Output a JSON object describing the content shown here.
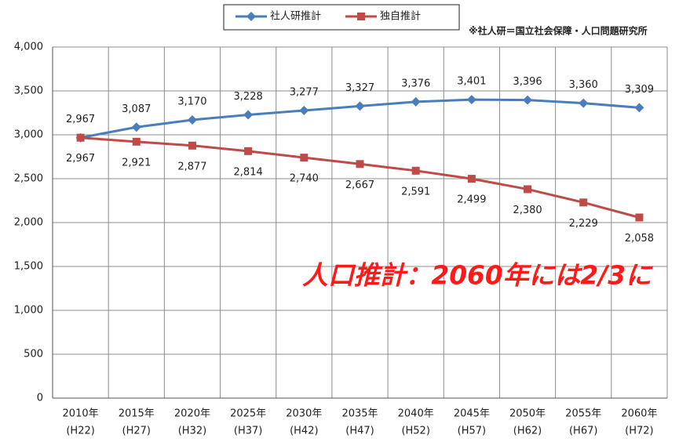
{
  "chart_data": {
    "type": "line",
    "categories": [
      [
        "2010年",
        "(H22)"
      ],
      [
        "2015年",
        "(H27)"
      ],
      [
        "2020年",
        "(H32)"
      ],
      [
        "2025年",
        "(H37)"
      ],
      [
        "2030年",
        "(H42)"
      ],
      [
        "2035年",
        "(H47)"
      ],
      [
        "2040年",
        "(H52)"
      ],
      [
        "2045年",
        "(H57)"
      ],
      [
        "2050年",
        "(H62)"
      ],
      [
        "2055年",
        "(H67)"
      ],
      [
        "2060年",
        "(H72)"
      ]
    ],
    "series": [
      {
        "name": "社人研推計",
        "color": "#4a7ebb",
        "marker": "diamond",
        "values": [
          2967,
          3087,
          3170,
          3228,
          3277,
          3327,
          3376,
          3401,
          3396,
          3360,
          3309
        ],
        "value_labels": [
          "2,967",
          "3,087",
          "3,170",
          "3,228",
          "3,277",
          "3,327",
          "3,376",
          "3,401",
          "3,396",
          "3,360",
          "3,309"
        ]
      },
      {
        "name": "独自推計",
        "color": "#be4b48",
        "marker": "square",
        "values": [
          2967,
          2921,
          2877,
          2814,
          2740,
          2667,
          2591,
          2499,
          2380,
          2229,
          2058
        ],
        "value_labels": [
          "2,967",
          "2,921",
          "2,877",
          "2,814",
          "2,740",
          "2,667",
          "2,591",
          "2,499",
          "2,380",
          "2,229",
          "2,058"
        ]
      }
    ],
    "ylim": [
      0,
      4000
    ],
    "yticks": [
      0,
      500,
      {
        "value": 1000,
        "label": "1,000"
      },
      {
        "value": 1500,
        "label": "1,500"
      },
      {
        "value": 2000,
        "label": "2,000"
      },
      {
        "value": 2500,
        "label": "2,500"
      },
      {
        "value": 3000,
        "label": "3,000"
      },
      {
        "value": 3500,
        "label": "3,500"
      },
      {
        "value": 4000,
        "label": "4,000"
      }
    ],
    "grid": true,
    "legend": "top",
    "annotations": [
      "※社人研＝国立社会保障・人口問題研究所",
      "人口推計：2060年には2/3に"
    ]
  }
}
